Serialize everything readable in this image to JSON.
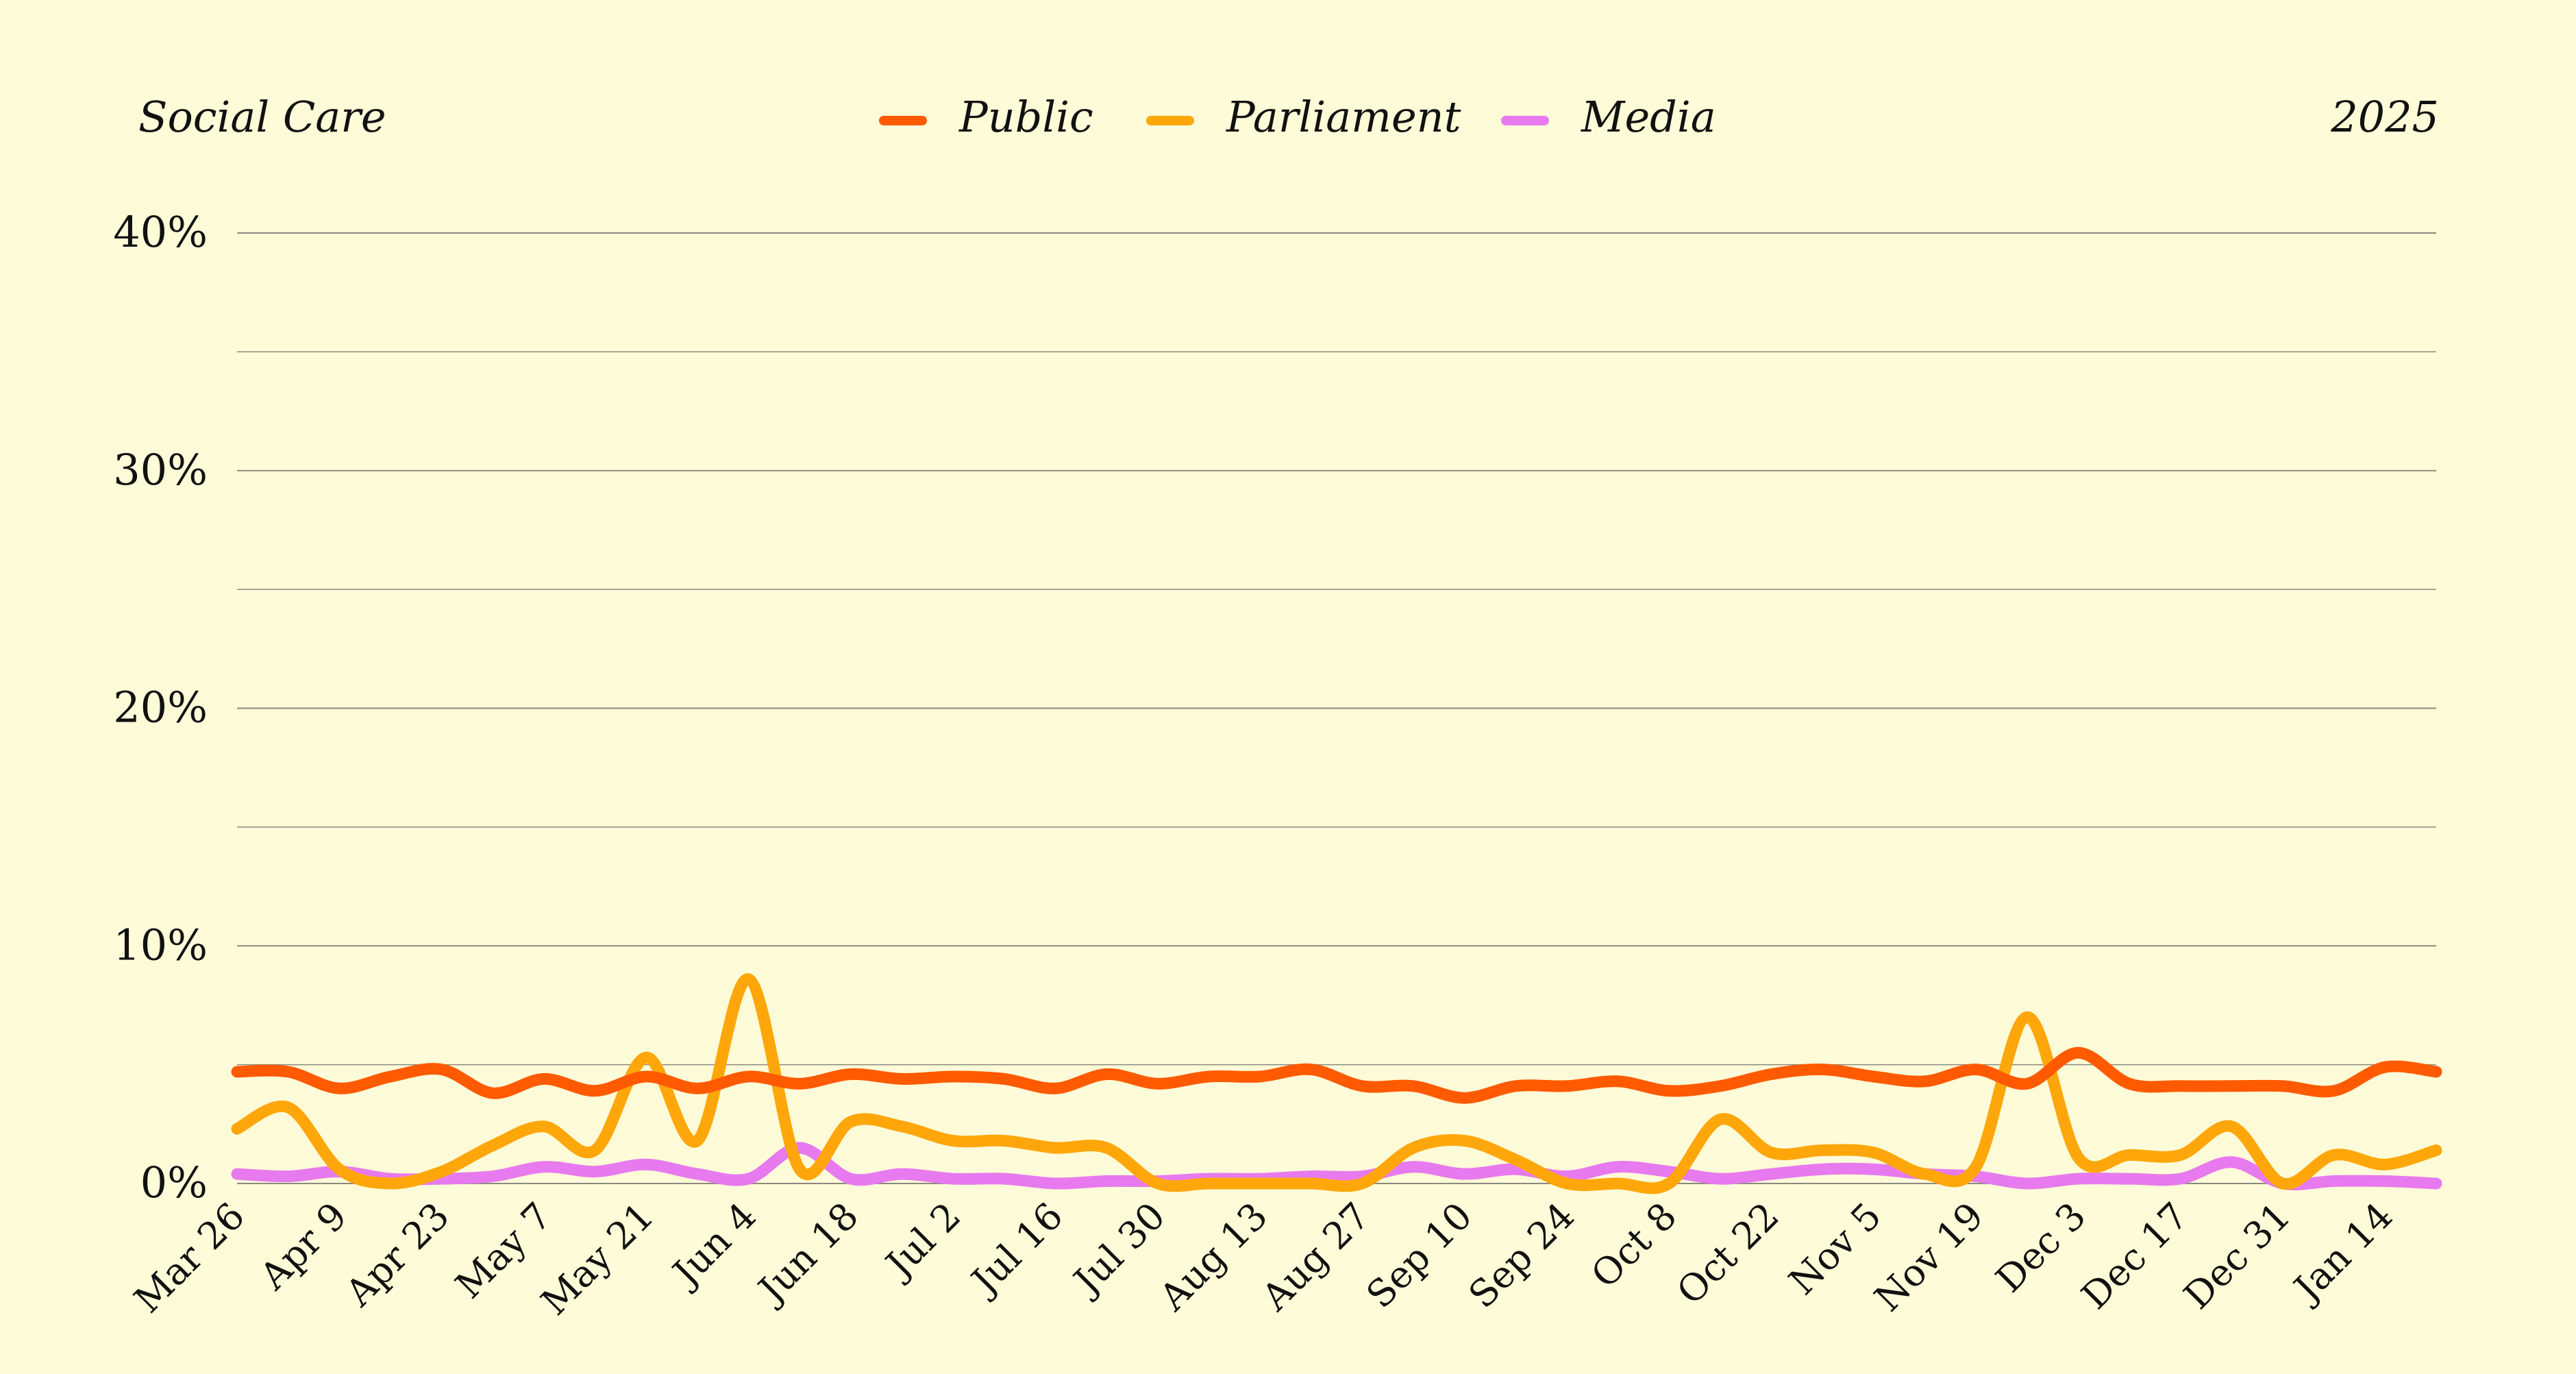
{
  "header": {
    "left_label": "Social Care",
    "right_label": "2025"
  },
  "chart_data": {
    "type": "line",
    "title": "",
    "xlabel": "",
    "ylabel": "",
    "ylim": [
      0,
      40
    ],
    "yticks": [
      0,
      10,
      20,
      30,
      40
    ],
    "ytick_labels": [
      "0%",
      "10%",
      "20%",
      "30%",
      "40%"
    ],
    "grid": "horizontal",
    "legend_position": "top-center",
    "xtick_labels": [
      "Mar 26",
      "Apr 9",
      "Apr 23",
      "May 7",
      "May 21",
      "Jun 4",
      "Jun 18",
      "Jul 2",
      "Jul 16",
      "Jul 30",
      "Aug 13",
      "Aug 27",
      "Sep 10",
      "Sep 24",
      "Oct 8",
      "Oct 22",
      "Nov 5",
      "Nov 19",
      "Dec 3",
      "Dec 17",
      "Dec 31",
      "Jan 14"
    ],
    "x": [
      "Mar 26",
      "Apr 2",
      "Apr 9",
      "Apr 16",
      "Apr 23",
      "Apr 30",
      "May 7",
      "May 14",
      "May 21",
      "May 28",
      "Jun 4",
      "Jun 11",
      "Jun 18",
      "Jun 25",
      "Jul 2",
      "Jul 9",
      "Jul 16",
      "Jul 23",
      "Jul 30",
      "Aug 6",
      "Aug 13",
      "Aug 20",
      "Aug 27",
      "Sep 3",
      "Sep 10",
      "Sep 17",
      "Sep 24",
      "Oct 1",
      "Oct 8",
      "Oct 15",
      "Oct 22",
      "Oct 29",
      "Nov 5",
      "Nov 12",
      "Nov 19",
      "Nov 26",
      "Dec 3",
      "Dec 10",
      "Dec 17",
      "Dec 24",
      "Dec 31",
      "Jan 7",
      "Jan 14",
      "Jan 21"
    ],
    "series": [
      {
        "name": "Public",
        "color": "#ff5a00",
        "values": [
          4.7,
          4.7,
          4.0,
          4.5,
          4.8,
          3.8,
          4.4,
          3.9,
          4.5,
          4.0,
          4.5,
          4.2,
          4.6,
          4.4,
          4.5,
          4.4,
          4.0,
          4.6,
          4.2,
          4.5,
          4.5,
          4.8,
          4.1,
          4.1,
          3.6,
          4.1,
          4.1,
          4.3,
          3.9,
          4.1,
          4.6,
          4.8,
          4.5,
          4.3,
          4.8,
          4.2,
          5.5,
          4.2,
          4.1,
          4.1,
          4.1,
          3.9,
          4.9,
          4.7
        ]
      },
      {
        "name": "Parliament",
        "color": "#ffa70a",
        "values": [
          2.3,
          3.2,
          0.6,
          0.0,
          0.5,
          1.6,
          2.4,
          1.4,
          5.3,
          1.8,
          8.6,
          0.6,
          2.6,
          2.4,
          1.8,
          1.8,
          1.5,
          1.5,
          0.0,
          0.0,
          0.0,
          0.0,
          0.0,
          1.5,
          1.8,
          1.0,
          0.0,
          0.0,
          0.0,
          2.7,
          1.3,
          1.4,
          1.3,
          0.4,
          0.7,
          7.0,
          1.1,
          1.2,
          1.2,
          2.4,
          0.0,
          1.2,
          0.8,
          1.4
        ]
      },
      {
        "name": "Media",
        "color": "#e77aee",
        "values": [
          0.4,
          0.3,
          0.5,
          0.2,
          0.2,
          0.3,
          0.7,
          0.5,
          0.8,
          0.4,
          0.2,
          1.5,
          0.2,
          0.4,
          0.2,
          0.2,
          0.0,
          0.1,
          0.1,
          0.2,
          0.2,
          0.3,
          0.3,
          0.7,
          0.4,
          0.6,
          0.3,
          0.7,
          0.5,
          0.2,
          0.4,
          0.6,
          0.6,
          0.4,
          0.3,
          0.0,
          0.2,
          0.2,
          0.2,
          0.9,
          0.0,
          0.1,
          0.1,
          0.0
        ]
      }
    ]
  }
}
